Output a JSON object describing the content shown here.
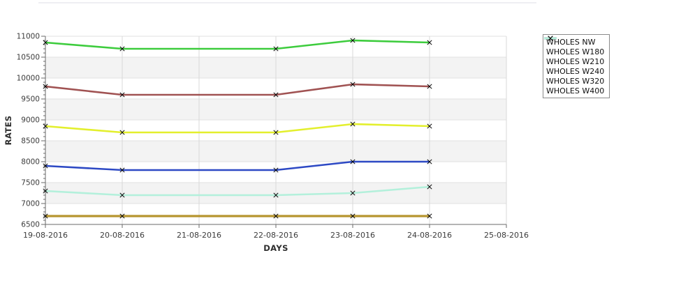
{
  "page": {
    "background": "#ffffff",
    "top_rule_color": "#dcdce4"
  },
  "chart_data": {
    "type": "line",
    "title": "",
    "xlabel": "DAYS",
    "ylabel": "RATES",
    "x_axis_ticks": [
      "19-08-2016",
      "20-08-2016",
      "21-08-2016",
      "22-08-2016",
      "23-08-2016",
      "24-08-2016",
      "25-08-2016"
    ],
    "x": [
      "19-08-2016",
      "20-08-2016",
      "22-08-2016",
      "23-08-2016",
      "24-08-2016"
    ],
    "ylim": [
      6500,
      11000
    ],
    "y_ticks": [
      6500,
      7000,
      7500,
      8000,
      8500,
      9000,
      9500,
      10000,
      10500,
      11000
    ],
    "y_minor_tick_step": 100,
    "grid": true,
    "band_colors": {
      "white": "#ffffff",
      "gray": "#f3f3f3"
    },
    "gridline_color_h": "#e2e2e2",
    "gridline_color_v": "#d8d8d8",
    "axis_color": "#6a6a6a",
    "marker": "x",
    "marker_color": "#000000",
    "legend_position": "right",
    "series": [
      {
        "name": "WHOLES NW",
        "color": "#b6952f",
        "values": [
          6700,
          6700,
          6700,
          6700,
          6700
        ]
      },
      {
        "name": "WHOLES W180",
        "color": "#3dcc3d",
        "values": [
          10850,
          10700,
          10700,
          10900,
          10850
        ]
      },
      {
        "name": "WHOLES W210",
        "color": "#a05252",
        "values": [
          9800,
          9600,
          9600,
          9850,
          9800
        ]
      },
      {
        "name": "WHOLES W240",
        "color": "#e3ef2d",
        "values": [
          8850,
          8700,
          8700,
          8900,
          8850
        ]
      },
      {
        "name": "WHOLES W320",
        "color": "#2d49c4",
        "values": [
          7900,
          7800,
          7800,
          8000,
          8000
        ]
      },
      {
        "name": "WHOLES W400",
        "color": "#b3f0db",
        "values": [
          7300,
          7200,
          7200,
          7250,
          7400
        ]
      }
    ]
  }
}
